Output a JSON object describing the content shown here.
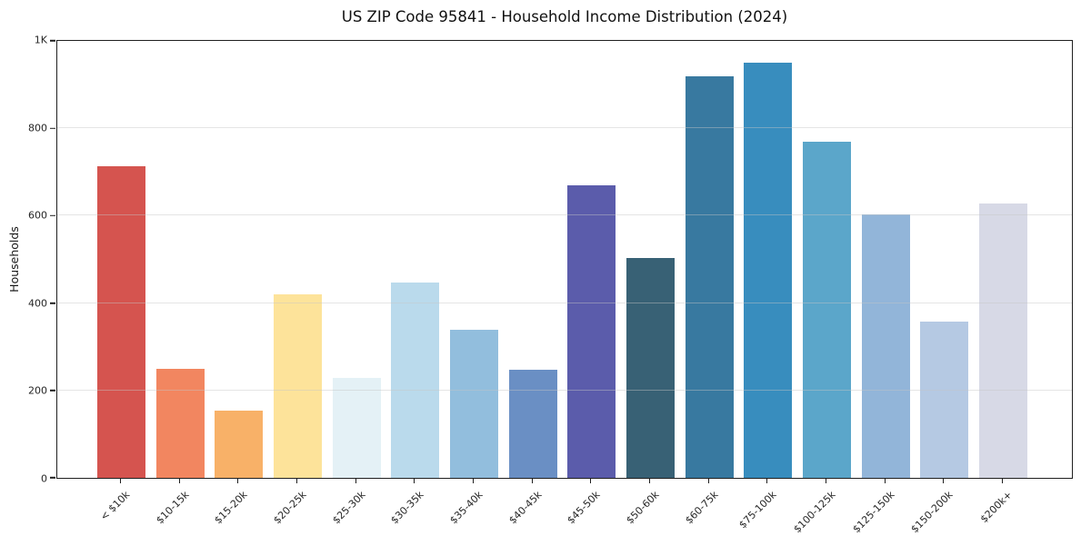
{
  "figure": {
    "title": "US ZIP Code 95841 - Household Income Distribution (2024)"
  },
  "chart_data": {
    "type": "bar",
    "title": "US ZIP Code 95841 - Household Income Distribution (2024)",
    "xlabel": "",
    "ylabel": "Households",
    "ylim": [
      0,
      1000
    ],
    "grid": true,
    "legend": "none",
    "categories": [
      "< $10k",
      "$10-15k",
      "$15-20k",
      "$20-25k",
      "$25-30k",
      "$30-35k",
      "$35-40k",
      "$40-45k",
      "$45-50k",
      "$50-60k",
      "$60-75k",
      "$75-100k",
      "$100-125k",
      "$125-150k",
      "$150-200k",
      "$200k+"
    ],
    "values": [
      714,
      250,
      153,
      421,
      228,
      447,
      338,
      247,
      669,
      504,
      918,
      950,
      769,
      603,
      357,
      628
    ],
    "bar_colors": [
      "#d5544f",
      "#f28660",
      "#f8b168",
      "#fde39a",
      "#e4f1f6",
      "#badaec",
      "#92bedd",
      "#6a8fc4",
      "#5b5cab",
      "#386175",
      "#3879a0",
      "#388dbe",
      "#5ba6ca",
      "#92b5d9",
      "#b5c9e3",
      "#d7d9e6"
    ],
    "yticks": {
      "values": [
        0,
        200,
        400,
        600,
        800,
        1000
      ],
      "labels": [
        "0",
        "200",
        "400",
        "600",
        "800",
        "1K"
      ]
    },
    "gridline_values": [
      200,
      400,
      600,
      800
    ]
  },
  "style_colors": {
    "background": "#ffffff",
    "spine": "#1f1f1f",
    "grid": "#e7e7e7",
    "text": "#1a1a1a"
  }
}
